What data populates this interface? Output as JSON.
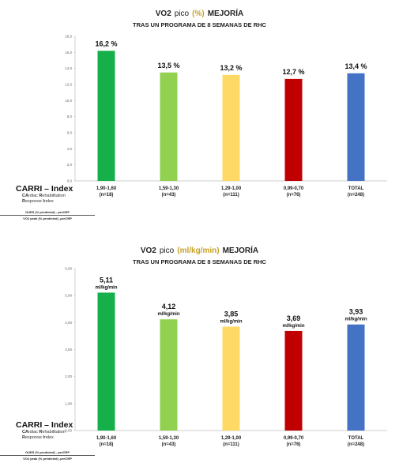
{
  "charts": [
    {
      "title": {
        "main": "VO2",
        "pico": "pico",
        "unit": "(%)",
        "tail": "MEJORÍA"
      },
      "subtitle": "TRAS UN PROGRAMA DE 8 SEMANAS DE RHC",
      "value_suffix": " %",
      "bar_unit_label": ""
    },
    {
      "title": {
        "main": "VO2",
        "pico": "pico",
        "unit": "(ml/kg/min)",
        "tail": "MEJORÍA"
      },
      "subtitle": "TRAS UN PROGRAMA DE 8 SEMANAS DE RHC",
      "value_suffix": "",
      "bar_unit_label": "ml/kg/min"
    }
  ],
  "carri": {
    "title": "CARRI – Index",
    "lines": [
      {
        "bold": "CA",
        "rest": "rdiac "
      },
      {
        "bold": "R",
        "rest": "ehabilitation"
      },
      {
        "bold": "R",
        "rest": "esponse "
      },
      {
        "bold": "I",
        "rest": "ndex"
      }
    ],
    "formula_num": "OUES (% predicted) - preCRP",
    "formula_den": "VO2 peak (% predicted) -preCRP"
  },
  "colors": {
    "green": "#16b04b",
    "light_green": "#92d050",
    "yellow": "#ffd966",
    "red": "#c00000",
    "blue": "#4472c4",
    "title_accent": "#c9a227",
    "axis": "#bfbfbf"
  },
  "chart_data": [
    {
      "type": "bar",
      "categories": [
        "1,90-1,60\n(n=18)",
        "1,59-1,30\n(n=43)",
        "1,29-1,00\n(n=111)",
        "0,99-0,70\n(n=76)",
        "TOTAL\n(n=248)"
      ],
      "values": [
        16.2,
        13.5,
        13.2,
        12.7,
        13.4
      ],
      "value_labels": [
        "16,2 %",
        "13,5 %",
        "13,2 %",
        "12,7 %",
        "13,4 %"
      ],
      "bar_colors": [
        "#16b04b",
        "#92d050",
        "#ffd966",
        "#c00000",
        "#4472c4"
      ],
      "ylim": [
        0,
        18
      ],
      "yticks": [
        0,
        2,
        4,
        6,
        8,
        10,
        12,
        14,
        16,
        18
      ],
      "ytick_labels": [
        "0,0",
        "2,0",
        "4,0",
        "6,0",
        "8,0",
        "10,0",
        "12,0",
        "14,0",
        "16,0",
        "18,0"
      ],
      "title": "VO2 pico (%) MEJORÍA",
      "subtitle": "TRAS UN PROGRAMA DE 8 SEMANAS DE RHC",
      "grid": false
    },
    {
      "type": "bar",
      "categories": [
        "1,90-1,60\n(n=18)",
        "1,59-1,30\n(n=43)",
        "1,29-1,00\n(n=111)",
        "0,99-0,70\n(n=76)",
        "TOTAL\n(n=248)"
      ],
      "values": [
        5.11,
        4.12,
        3.85,
        3.69,
        3.93
      ],
      "value_labels": [
        "5,11",
        "4,12",
        "3,85",
        "3,69",
        "3,93"
      ],
      "bar_colors": [
        "#16b04b",
        "#92d050",
        "#ffd966",
        "#c00000",
        "#4472c4"
      ],
      "ylim": [
        0,
        6
      ],
      "yticks": [
        0,
        1,
        2,
        3,
        4,
        5,
        6
      ],
      "ytick_labels": [
        "0,00",
        "1,00",
        "2,00",
        "3,00",
        "4,00",
        "5,00",
        "6,00"
      ],
      "title": "VO2 pico (ml/kg/min) MEJORÍA",
      "subtitle": "TRAS UN PROGRAMA DE 8 SEMANAS DE RHC",
      "grid": false
    }
  ]
}
